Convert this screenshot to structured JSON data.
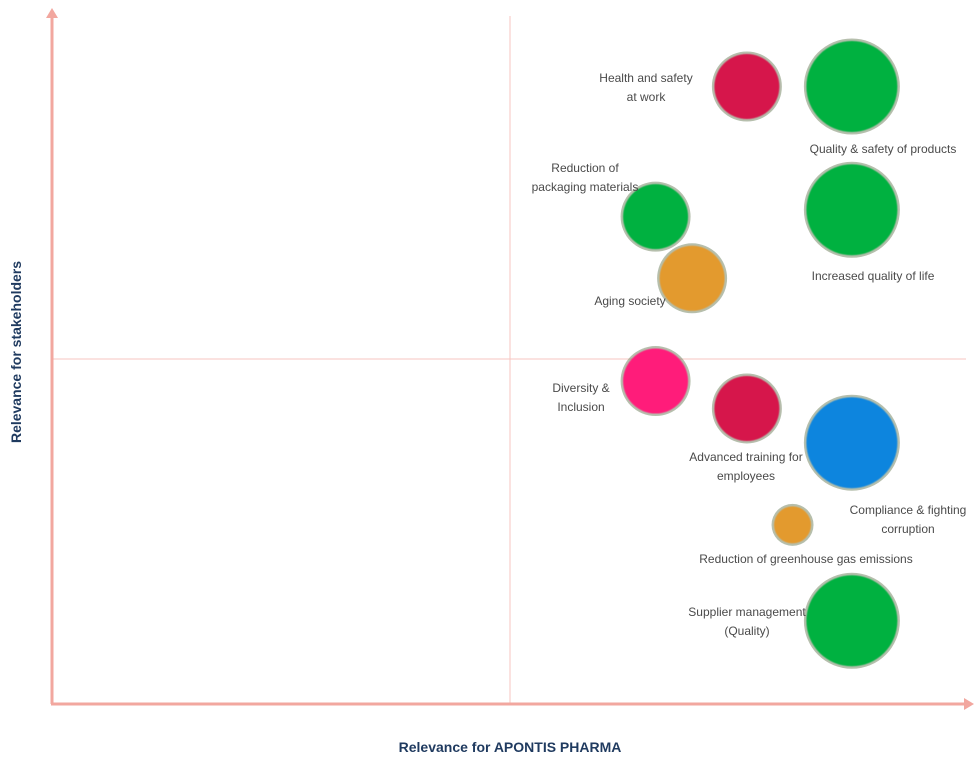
{
  "chart_data": {
    "type": "scatter",
    "xlabel": "Relevance for APONTIS PHARMA",
    "ylabel": "Relevance for stakeholders",
    "xlim": [
      0,
      10
    ],
    "ylim": [
      0,
      10
    ],
    "grid": false,
    "quadrant_lines": true,
    "colors": {
      "axis": "#f2a79f",
      "divider": "#f7c6c0",
      "green": "#00b140",
      "crimson": "#d6154c",
      "orange": "#e39a2f",
      "pink": "#ff1d7a",
      "blue": "#0a85de"
    },
    "points": [
      {
        "label": [
          "Health and safety",
          "at work"
        ],
        "x": 7.6,
        "y": 9.0,
        "size": "medium",
        "color": "crimson"
      },
      {
        "label": [
          "Quality & safety of products"
        ],
        "x": 8.75,
        "y": 9.0,
        "size": "large",
        "color": "green"
      },
      {
        "label": [
          "Reduction of",
          "packaging materials"
        ],
        "x": 6.6,
        "y": 7.1,
        "size": "medium",
        "color": "green"
      },
      {
        "label": [
          "Increased quality of life"
        ],
        "x": 8.75,
        "y": 7.2,
        "size": "large",
        "color": "green"
      },
      {
        "label": [
          "Aging society"
        ],
        "x": 7.0,
        "y": 6.2,
        "size": "medium",
        "color": "orange"
      },
      {
        "label": [
          "Diversity &",
          "Inclusion"
        ],
        "x": 6.6,
        "y": 4.7,
        "size": "medium",
        "color": "pink"
      },
      {
        "label": [
          "Advanced training for",
          "employees"
        ],
        "x": 7.6,
        "y": 4.3,
        "size": "medium",
        "color": "crimson"
      },
      {
        "label": [
          "Compliance & fighting",
          "corruption"
        ],
        "x": 8.75,
        "y": 3.8,
        "size": "large",
        "color": "blue"
      },
      {
        "label": [
          "Reduction of greenhouse gas emissions"
        ],
        "x": 8.1,
        "y": 2.6,
        "size": "small",
        "color": "orange"
      },
      {
        "label": [
          "Supplier management",
          "(Quality)"
        ],
        "x": 8.75,
        "y": 1.2,
        "size": "large",
        "color": "green"
      }
    ]
  }
}
